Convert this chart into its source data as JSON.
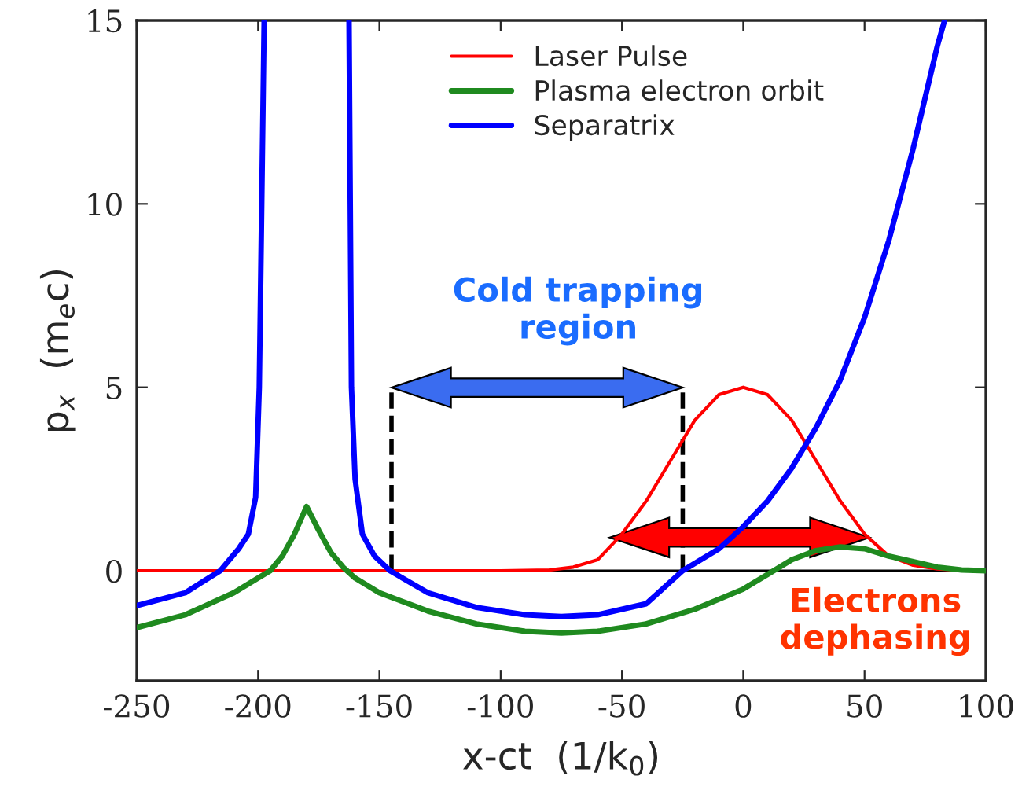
{
  "chart_data": {
    "type": "line",
    "xlabel": "x-ct  (1/k$_{0}$)",
    "ylabel": "p$_{x}$  (m$_{e}$c)",
    "xlim": [
      -250,
      100
    ],
    "xticks": [
      -250,
      -200,
      -150,
      -100,
      -50,
      0,
      50,
      100
    ],
    "ylim": [
      -3,
      15
    ],
    "yticks": [
      0,
      5,
      10,
      15
    ],
    "grid": false,
    "legend": "top",
    "marker": "none",
    "line_style": "solid",
    "ref_lines": [
      {
        "axis": "y",
        "value": 0,
        "color": "#000000"
      }
    ],
    "annotations": [
      "Cold trapping\nregion",
      "Electrons\ndephasing"
    ],
    "series": [
      {
        "name": "Laser Pulse",
        "color": "#ff0000",
        "x": [
          -250,
          -150,
          -100,
          -80,
          -70,
          -60,
          -50,
          -40,
          -30,
          -20,
          -10,
          0,
          10,
          20,
          30,
          40,
          50,
          60,
          70,
          80,
          90,
          100
        ],
        "values": [
          0,
          0,
          0,
          0.02,
          0.1,
          0.3,
          1.0,
          1.9,
          3.0,
          4.1,
          4.8,
          5,
          4.8,
          4.1,
          3.0,
          1.9,
          1.0,
          0.4,
          0.15,
          0.05,
          0.01,
          0
        ]
      },
      {
        "name": "Plasma electron orbit",
        "color": "#1f8a1f",
        "x": [
          -250,
          -230,
          -210,
          -200,
          -195,
          -190,
          -185,
          -180,
          -175,
          -170,
          -165,
          -160,
          -150,
          -130,
          -110,
          -90,
          -75,
          -60,
          -40,
          -20,
          0,
          10,
          20,
          30,
          40,
          50,
          60,
          70,
          80,
          90,
          100
        ],
        "values": [
          -1.55,
          -1.2,
          -0.6,
          -0.2,
          0,
          0.4,
          1.0,
          1.75,
          1.1,
          0.5,
          0.1,
          -0.2,
          -0.6,
          -1.1,
          -1.45,
          -1.65,
          -1.7,
          -1.65,
          -1.45,
          -1.05,
          -0.5,
          -0.1,
          0.3,
          0.55,
          0.65,
          0.6,
          0.4,
          0.25,
          0.1,
          0.02,
          0
        ]
      },
      {
        "name": "Separatrix",
        "color": "#0000ff",
        "x": [
          -250,
          -230,
          -215.6,
          -208,
          -204,
          -201,
          -199.5,
          -198.5,
          -197.5,
          null,
          -162.5,
          -162,
          -161.5,
          -160,
          -157,
          -152,
          -145.6,
          -130,
          -110,
          -90,
          -75,
          -60,
          -40,
          -25,
          -10,
          0,
          10,
          20,
          30,
          40,
          50,
          60,
          70,
          80,
          83
        ],
        "values": [
          -0.95,
          -0.6,
          0,
          0.6,
          1.0,
          2.0,
          5,
          10,
          15,
          null,
          15,
          10,
          5,
          2.5,
          1.0,
          0.4,
          0,
          -0.6,
          -1.0,
          -1.2,
          -1.25,
          -1.2,
          -0.9,
          0,
          0.6,
          1.2,
          1.9,
          2.8,
          3.9,
          5.2,
          6.9,
          9,
          11.5,
          14.3,
          15
        ]
      }
    ]
  }
}
